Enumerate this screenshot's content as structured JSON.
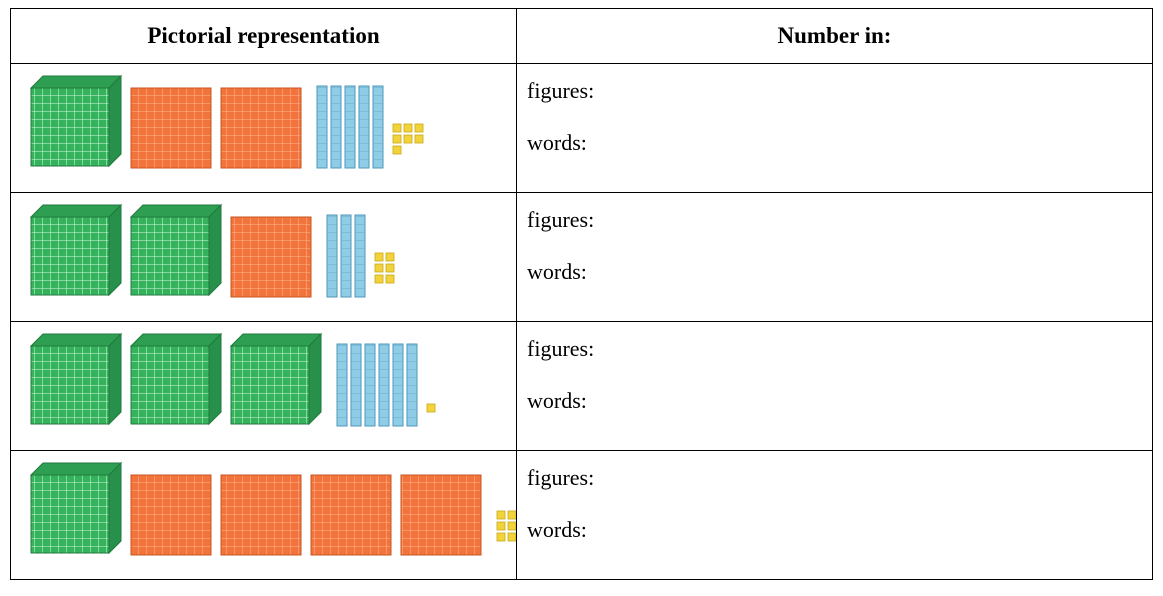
{
  "table": {
    "header": [
      "Pictorial representation",
      "Number in:"
    ],
    "rows": [
      {
        "figures": "figures:",
        "words": "words:"
      },
      {
        "figures": "figures:",
        "words": "words:"
      },
      {
        "figures": "figures:",
        "words": "words:"
      },
      {
        "figures": "figures:",
        "words": "words:"
      }
    ]
  }
}
